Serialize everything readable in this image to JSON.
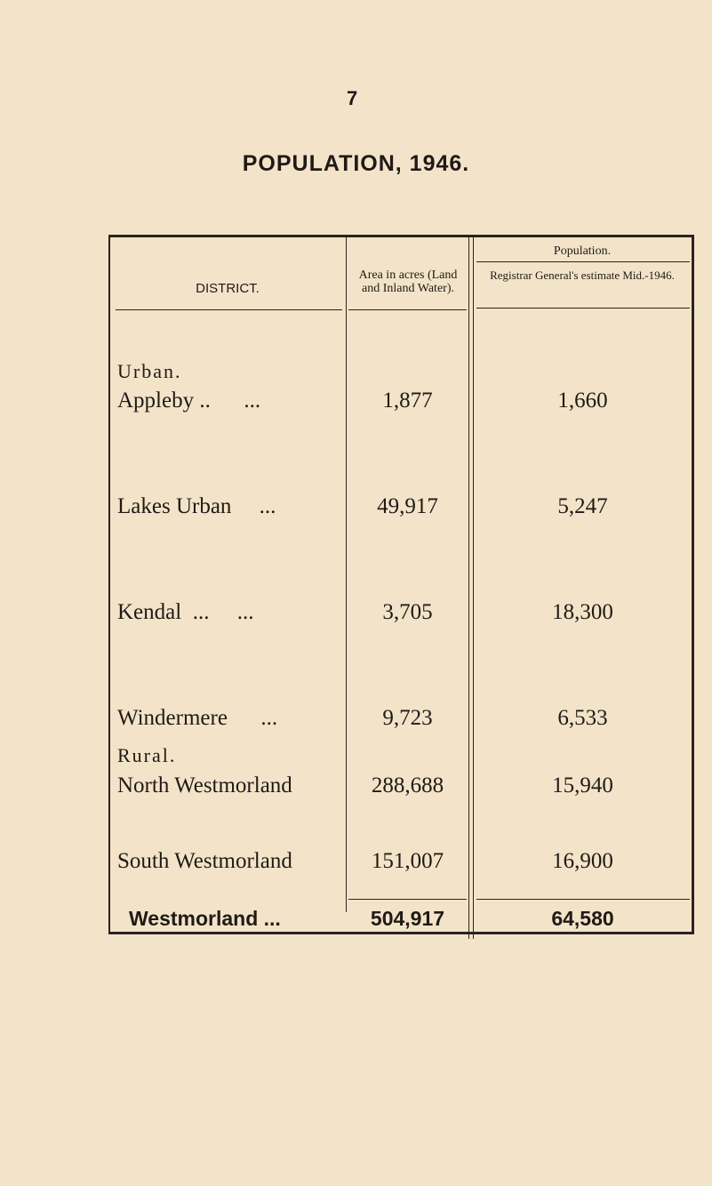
{
  "page_number": "7",
  "title": "POPULATION, 1946.",
  "header": {
    "district": "DISTRICT.",
    "area": "Area in acres (Land and Inland Water).",
    "population_group": "Population.",
    "population": "Registrar General's estimate Mid.-1946."
  },
  "sections": [
    {
      "label": "Urban.",
      "rows": [
        {
          "district": "Appleby ..      ...",
          "area": "1,877",
          "population": "1,660"
        },
        {
          "district": "Lakes Urban     ...",
          "area": "49,917",
          "population": "5,247"
        },
        {
          "district": "Kendal  ...     ...",
          "area": "3,705",
          "population": "18,300"
        },
        {
          "district": "Windermere      ...",
          "area": "9,723",
          "population": "6,533"
        }
      ]
    },
    {
      "label": "Rural.",
      "rows": [
        {
          "district": "North Westmorland",
          "area": "288,688",
          "population": "15,940"
        },
        {
          "district": "South Westmorland",
          "area": "151,007",
          "population": "16,900"
        }
      ]
    }
  ],
  "total": {
    "district": "Westmorland ...",
    "area": "504,917",
    "population": "64,580"
  }
}
